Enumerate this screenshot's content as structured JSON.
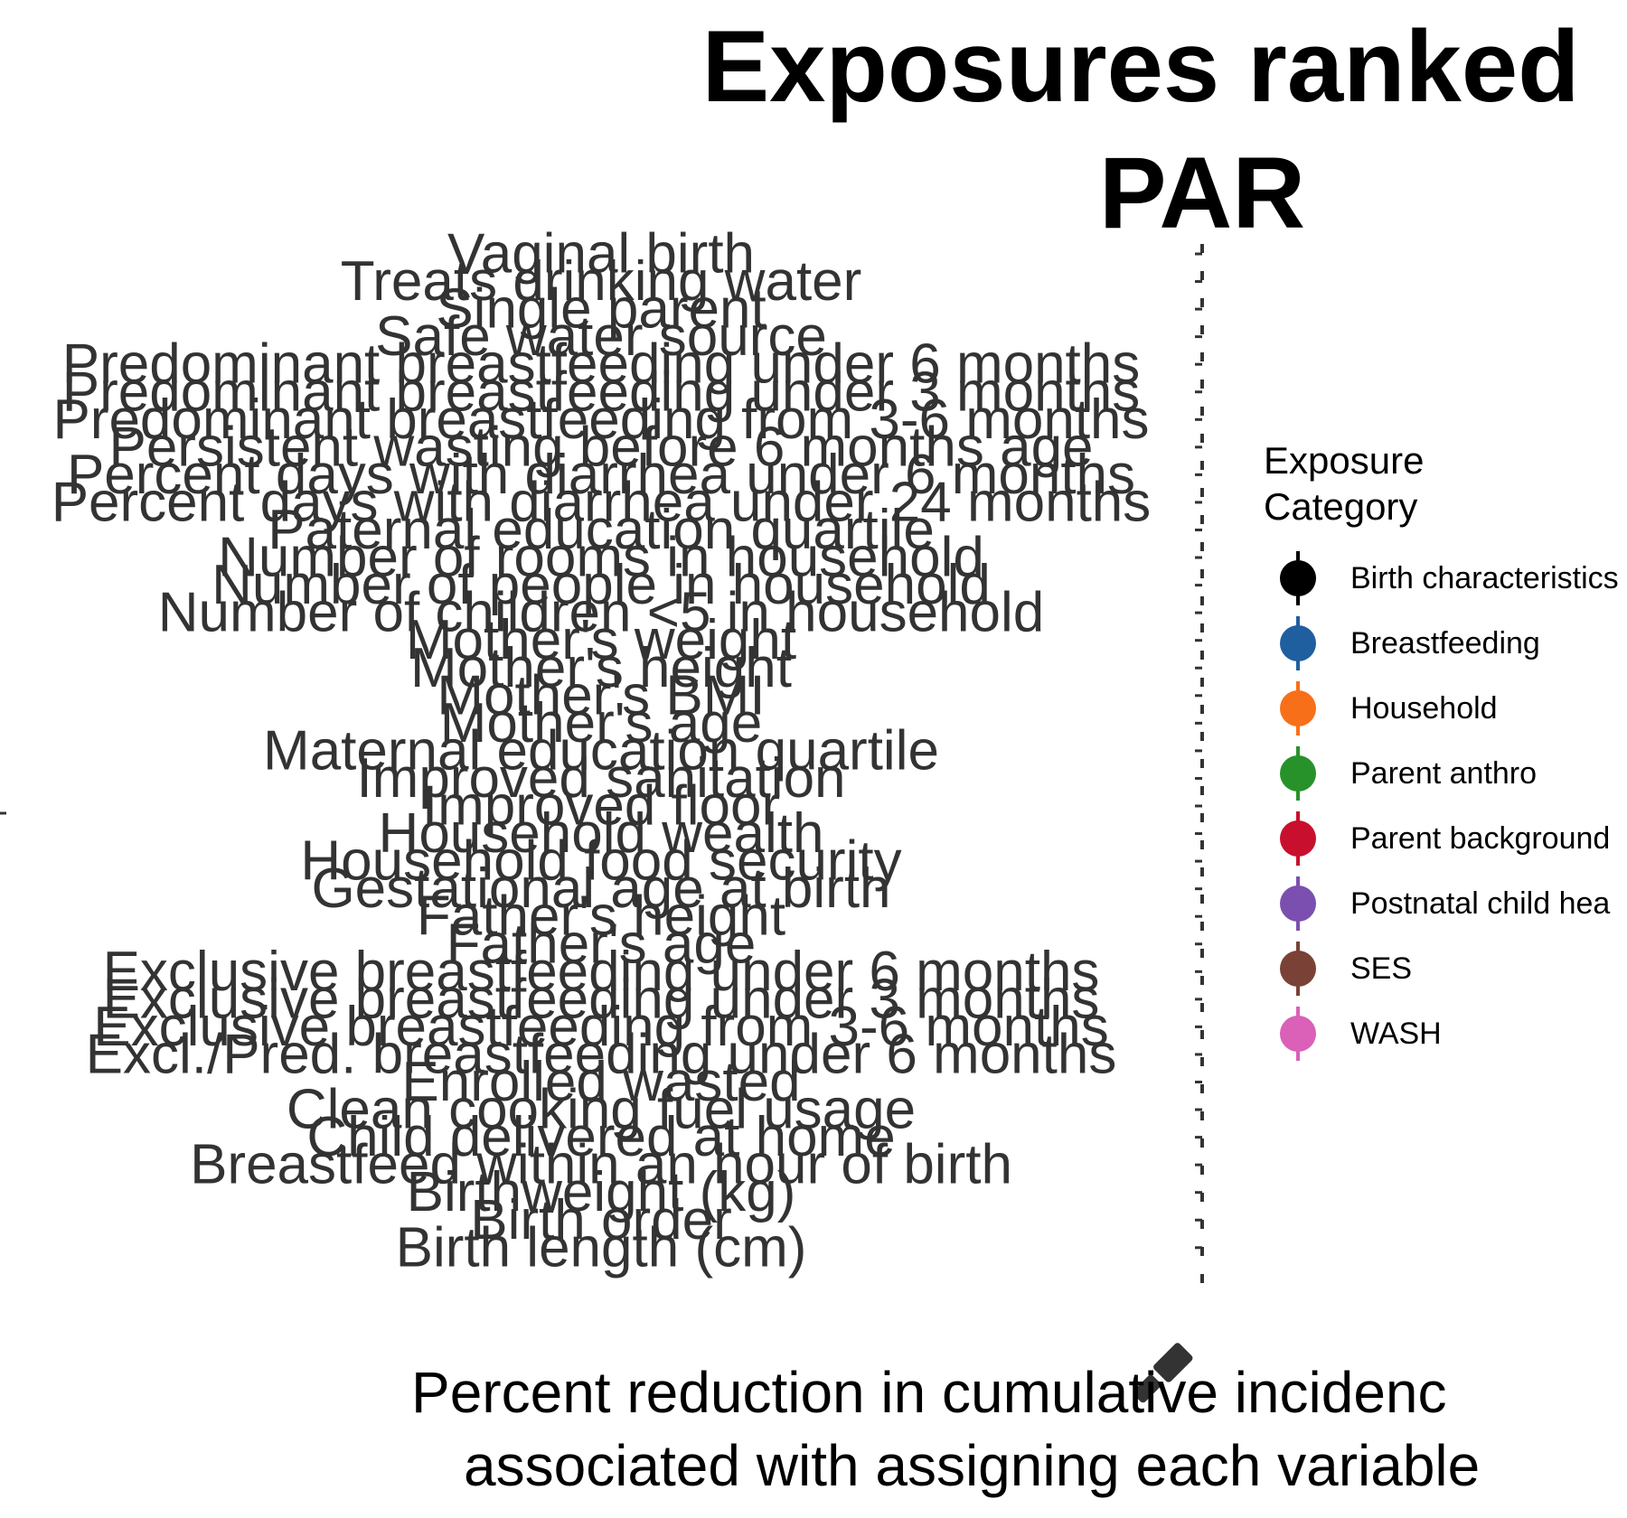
{
  "chart_data": {
    "type": "scatter",
    "title_lines": [
      "Exposures ranked",
      "PAR"
    ],
    "xlabel_lines": [
      "Percent reduction in cumulative incidenc",
      "associated with assigning each variable"
    ],
    "ylabel": "",
    "categories": [
      "Vaginal birth",
      "Treats drinking water",
      "Single parent",
      "Safe water source",
      "Predominant breastfeeding under 6 months",
      "Predominant breastfeeding under 3 months",
      "Predominant breastfeeding from 3-6 months",
      "Persistent wasting before 6 months age",
      "Percent days with diarrhea under 6 months",
      "Percent days with diarrhea under 24 months",
      "Paternal education quartile",
      "Number of rooms in household",
      "Number of people in household",
      "Number of children <5 in household",
      "Mother's weight",
      "Mother's height",
      "Mother's BMI",
      "Mother's age",
      "Maternal education quartile",
      "Improved sanitation",
      "Improved floor",
      "Household wealth",
      "Household food security",
      "Gestational age at birth",
      "Father's height",
      "Father's age",
      "Exclusive breastfeeding under 6 months",
      "Exclusive breastfeeding under 3 months",
      "Exclusive breastfeeding from 3-6 months",
      "Excl./Pred. breastfeeding under 6 months",
      "Enrolled wasted",
      "Clean cooking fuel usage",
      "Child delivered at home",
      "Breastfeed within an hour of birth",
      "Birthweight (kg)",
      "Birth order",
      "Birth length (cm)"
    ],
    "legend": {
      "title_lines": [
        "Exposure",
        "Category"
      ],
      "placement": "right",
      "entries": [
        {
          "name": "Birth characteristics",
          "color": "#000000"
        },
        {
          "name": "Breastfeeding",
          "color": "#1F5FA0"
        },
        {
          "name": "Household",
          "color": "#F86F1A"
        },
        {
          "name": "Parent anthro",
          "color": "#27922A"
        },
        {
          "name": "Parent background",
          "color": "#C8102E"
        },
        {
          "name": "Postnatal child hea",
          "color": "#7B4FB0"
        },
        {
          "name": "SES",
          "color": "#7A4236"
        },
        {
          "name": "WASH",
          "color": "#DA60B8"
        }
      ]
    },
    "grid": false
  }
}
